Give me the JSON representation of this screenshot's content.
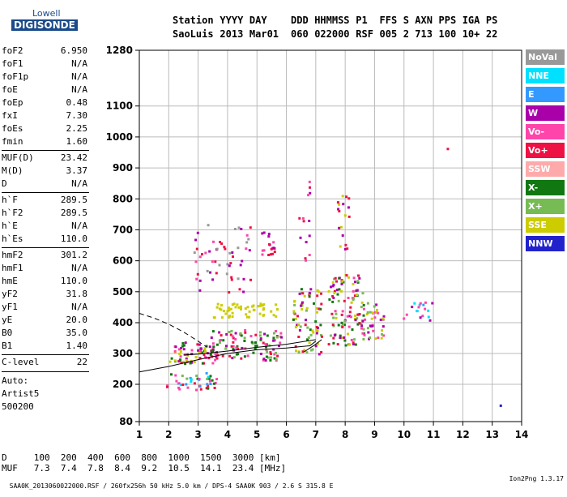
{
  "logo": {
    "line1": "Lowell",
    "line2": "DIGISONDE"
  },
  "header": {
    "labels": [
      "Station",
      "YYYY",
      "DAY",
      "DDD",
      "HHMMSS",
      "P1",
      "FFS",
      "S",
      "AXN",
      "PPS",
      "IGA",
      "PS"
    ],
    "values": [
      "SaoLuis",
      "2013",
      "Mar01",
      "060",
      "022000",
      "RSF",
      "005",
      "2",
      "713",
      "100",
      "10+",
      "22"
    ]
  },
  "params": [
    {
      "name": "foF2",
      "value": "6.950"
    },
    {
      "name": "foF1",
      "value": "N/A"
    },
    {
      "name": "foF1p",
      "value": "N/A"
    },
    {
      "name": "foE",
      "value": "N/A"
    },
    {
      "name": "foEp",
      "value": "0.48"
    },
    {
      "name": "fxI",
      "value": "7.30"
    },
    {
      "name": "foEs",
      "value": "2.25"
    },
    {
      "name": "fmin",
      "value": "1.60"
    },
    {
      "name": "MUF(D)",
      "value": "23.42"
    },
    {
      "name": "M(D)",
      "value": "3.37"
    },
    {
      "name": "D",
      "value": "N/A"
    },
    {
      "name": "h`F",
      "value": "289.5"
    },
    {
      "name": "h`F2",
      "value": "289.5"
    },
    {
      "name": "h`E",
      "value": "N/A"
    },
    {
      "name": "h`Es",
      "value": "110.0"
    },
    {
      "name": "hmF2",
      "value": "301.2"
    },
    {
      "name": "hmF1",
      "value": "N/A"
    },
    {
      "name": "hmE",
      "value": "110.0"
    },
    {
      "name": "yF2",
      "value": "31.8"
    },
    {
      "name": "yF1",
      "value": "N/A"
    },
    {
      "name": "yE",
      "value": "20.0"
    },
    {
      "name": "B0",
      "value": "35.0"
    },
    {
      "name": "B1",
      "value": "1.40"
    },
    {
      "name": "C-level",
      "value": "22"
    }
  ],
  "auto": {
    "line1": "Auto:",
    "line2": "Artist5",
    "line3": "500200"
  },
  "legend": [
    {
      "label": "NoVal",
      "color": "#999999"
    },
    {
      "label": "NNE",
      "color": "#00e0ff"
    },
    {
      "label": "E",
      "color": "#3399ff"
    },
    {
      "label": "W",
      "color": "#aa00aa"
    },
    {
      "label": "Vo-",
      "color": "#ff44aa"
    },
    {
      "label": "Vo+",
      "color": "#ee1144"
    },
    {
      "label": "SSW",
      "color": "#ffaaaa"
    },
    {
      "label": "X-",
      "color": "#117711"
    },
    {
      "label": "X+",
      "color": "#77bb55"
    },
    {
      "label": "SSE",
      "color": "#cccc00"
    },
    {
      "label": "NNW",
      "color": "#2222cc"
    }
  ],
  "muf_table": {
    "d_label": "D",
    "muf_label": "MUF",
    "distances": [
      "100",
      "200",
      "400",
      "600",
      "800",
      "1000",
      "1500",
      "3000"
    ],
    "mufs": [
      "7.3",
      "7.4",
      "7.8",
      "8.4",
      "9.2",
      "10.5",
      "14.1",
      "23.4"
    ],
    "d_unit": "[km]",
    "muf_unit": "[MHz]"
  },
  "footer": {
    "left": "SAA0K_2013060022000.RSF / 260fx256h 50 kHz 5.0 km / DPS-4 SAA0K 903 / 2.6 S 315.8 E",
    "right": "Ion2Png 1.3.17"
  },
  "chart_data": {
    "type": "scatter",
    "title": "",
    "xlabel": "",
    "ylabel": "",
    "xlim": [
      1,
      14
    ],
    "ylim": [
      80,
      1280
    ],
    "xticks": [
      1,
      2,
      3,
      4,
      5,
      6,
      7,
      8,
      9,
      10,
      11,
      12,
      13,
      14
    ],
    "yticks": [
      80,
      200,
      300,
      400,
      500,
      600,
      700,
      800,
      900,
      1000,
      1100,
      1280
    ],
    "grid": true,
    "trace_regions": [
      {
        "name": "E-sporadic band",
        "xmin": 1.9,
        "xmax": 3.6,
        "ymin": 180,
        "ymax": 240,
        "colors": [
          "#117711",
          "#77bb55",
          "#3399ff",
          "#ee1144",
          "#ff44aa",
          "#00e0ff"
        ],
        "density": 45
      },
      {
        "name": "F-low",
        "xmin": 2.0,
        "xmax": 3.5,
        "ymin": 270,
        "ymax": 340,
        "colors": [
          "#ee1144",
          "#aa00aa",
          "#ff44aa",
          "#117711",
          "#cccc00"
        ],
        "density": 70
      },
      {
        "name": "F-trace main",
        "xmin": 3.4,
        "xmax": 5.8,
        "ymin": 280,
        "ymax": 380,
        "colors": [
          "#ee1144",
          "#aa00aa",
          "#117711",
          "#77bb55",
          "#ff44aa"
        ],
        "density": 110
      },
      {
        "name": "F-upper",
        "xmin": 3.5,
        "xmax": 5.8,
        "ymin": 420,
        "ymax": 470,
        "colors": [
          "#cccc00"
        ],
        "density": 50
      },
      {
        "name": "F-oblique a",
        "xmin": 2.8,
        "xmax": 4.8,
        "ymin": 500,
        "ymax": 720,
        "colors": [
          "#aa00aa",
          "#ff44aa",
          "#ee1144",
          "#999999"
        ],
        "density": 55
      },
      {
        "name": "F-oblique b",
        "xmin": 5.1,
        "xmax": 5.6,
        "ymin": 600,
        "ymax": 700,
        "colors": [
          "#ee1144",
          "#aa00aa",
          "#ff44aa"
        ],
        "density": 18
      },
      {
        "name": "col 6.5",
        "xmin": 6.2,
        "xmax": 7.2,
        "ymin": 300,
        "ymax": 520,
        "colors": [
          "#cccc00",
          "#117711",
          "#ee1144",
          "#aa00aa",
          "#77bb55"
        ],
        "density": 75
      },
      {
        "name": "col 8",
        "xmin": 7.4,
        "xmax": 8.6,
        "ymin": 330,
        "ymax": 560,
        "colors": [
          "#aa00aa",
          "#ee1144",
          "#cccc00",
          "#ff44aa",
          "#117711",
          "#77bb55"
        ],
        "density": 110
      },
      {
        "name": "col 8 upper",
        "xmin": 7.7,
        "xmax": 8.1,
        "ymin": 620,
        "ymax": 820,
        "colors": [
          "#aa00aa",
          "#ee1144",
          "#cccc00"
        ],
        "density": 18
      },
      {
        "name": "col 9",
        "xmin": 8.5,
        "xmax": 9.3,
        "ymin": 350,
        "ymax": 470,
        "colors": [
          "#aa00aa",
          "#ff44aa",
          "#cccc00",
          "#77bb55"
        ],
        "density": 45
      },
      {
        "name": "col 10.5",
        "xmin": 9.9,
        "xmax": 11.0,
        "ymin": 410,
        "ymax": 470,
        "colors": [
          "#aa00aa",
          "#3399ff",
          "#00e0ff",
          "#ff44aa"
        ],
        "density": 18
      },
      {
        "name": "col 6.5 upper",
        "xmin": 6.4,
        "xmax": 6.8,
        "ymin": 600,
        "ymax": 880,
        "colors": [
          "#ee1144",
          "#aa00aa",
          "#ff44aa"
        ],
        "density": 14
      }
    ],
    "isolated_points": [
      {
        "x": 11.45,
        "y": 965,
        "color": "#ee1144"
      },
      {
        "x": 13.25,
        "y": 135,
        "color": "#2222cc"
      }
    ],
    "curves": [
      {
        "name": "F trace fit",
        "style": "solid",
        "points": [
          [
            1,
            240
          ],
          [
            2,
            258
          ],
          [
            3,
            280
          ],
          [
            4,
            300
          ],
          [
            5,
            312
          ],
          [
            6,
            318
          ],
          [
            6.8,
            325
          ],
          [
            7.0,
            340
          ]
        ]
      },
      {
        "name": "F trace fit upper",
        "style": "solid",
        "points": [
          [
            2.5,
            295
          ],
          [
            3,
            298
          ],
          [
            4,
            308
          ],
          [
            5,
            320
          ],
          [
            6,
            330
          ],
          [
            7,
            345
          ]
        ]
      },
      {
        "name": "O-trace model",
        "style": "solid",
        "points": [
          [
            6.6,
            305
          ],
          [
            7.0,
            330
          ],
          [
            7.2,
            345
          ]
        ]
      },
      {
        "name": "X-trace model",
        "style": "dashed",
        "points": [
          [
            1,
            430
          ],
          [
            1.5,
            415
          ],
          [
            2,
            395
          ],
          [
            2.5,
            370
          ],
          [
            3,
            340
          ],
          [
            3.3,
            320
          ]
        ]
      }
    ]
  }
}
